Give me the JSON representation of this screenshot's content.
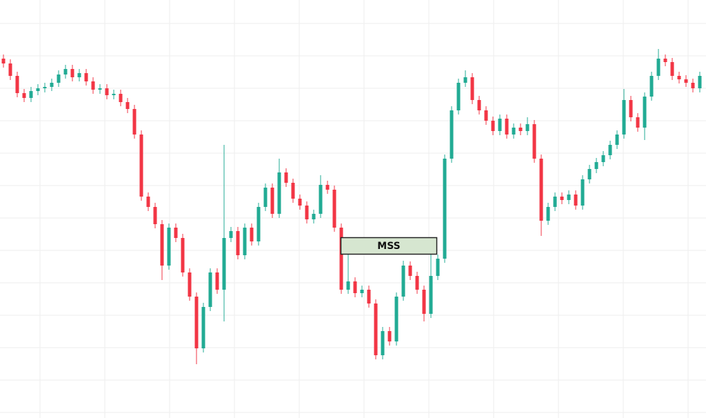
{
  "chart_data": {
    "type": "candlestick",
    "up_color": "#22ab94",
    "down_color": "#f23645",
    "grid": true,
    "ylim": [
      0,
      606
    ],
    "annotations": [
      {
        "text": "MSS",
        "fill": "#d6e6d0",
        "border": "#222222"
      }
    ],
    "open": [
      521,
      514,
      496,
      471,
      464,
      474,
      478,
      480,
      486,
      498,
      506,
      494,
      500,
      488,
      476,
      478,
      468,
      470,
      458,
      448,
      411,
      321,
      306,
      281,
      221,
      276,
      261,
      211,
      176,
      101,
      161,
      211,
      186,
      261,
      271,
      236,
      276,
      256,
      306,
      334,
      296,
      356,
      341,
      318,
      308,
      288,
      296,
      338,
      331,
      276,
      186,
      198,
      181,
      186,
      166,
      91,
      126,
      111,
      176,
      221,
      206,
      186,
      151,
      206,
      231,
      376,
      446,
      486,
      494,
      461,
      446,
      431,
      416,
      434,
      411,
      421,
      416,
      426,
      376,
      286,
      306,
      321,
      316,
      324,
      308,
      346,
      361,
      371,
      381,
      396,
      411,
      461,
      436,
      421,
      466,
      496,
      521,
      516,
      496,
      491,
      486,
      478
    ],
    "high": [
      527,
      520,
      502,
      477,
      480,
      484,
      486,
      492,
      504,
      512,
      512,
      506,
      506,
      494,
      484,
      484,
      476,
      476,
      464,
      454,
      417,
      327,
      312,
      287,
      282,
      282,
      267,
      217,
      182,
      167,
      217,
      217,
      396,
      277,
      277,
      282,
      282,
      312,
      340,
      340,
      376,
      362,
      347,
      324,
      314,
      302,
      352,
      344,
      337,
      282,
      238,
      204,
      192,
      192,
      172,
      132,
      132,
      182,
      228,
      227,
      212,
      192,
      250,
      237,
      382,
      452,
      492,
      504,
      500,
      467,
      452,
      437,
      440,
      440,
      427,
      427,
      436,
      432,
      382,
      312,
      327,
      327,
      330,
      330,
      352,
      367,
      377,
      387,
      402,
      417,
      477,
      467,
      442,
      472,
      502,
      535,
      527,
      522,
      502,
      497,
      492,
      502
    ],
    "low": [
      508,
      490,
      465,
      458,
      458,
      468,
      472,
      474,
      480,
      492,
      488,
      488,
      482,
      470,
      470,
      462,
      462,
      452,
      442,
      405,
      315,
      300,
      275,
      200,
      215,
      255,
      205,
      170,
      78,
      95,
      155,
      180,
      140,
      255,
      230,
      230,
      250,
      250,
      300,
      290,
      290,
      335,
      312,
      302,
      282,
      282,
      290,
      325,
      270,
      180,
      180,
      175,
      175,
      160,
      85,
      85,
      105,
      105,
      170,
      200,
      180,
      140,
      145,
      200,
      225,
      370,
      440,
      480,
      455,
      440,
      425,
      410,
      410,
      405,
      405,
      410,
      410,
      370,
      264,
      280,
      300,
      310,
      310,
      302,
      302,
      340,
      355,
      365,
      375,
      390,
      405,
      430,
      415,
      403,
      460,
      490,
      510,
      490,
      485,
      480,
      472,
      472
    ],
    "close": [
      514,
      496,
      471,
      464,
      474,
      478,
      480,
      486,
      498,
      506,
      494,
      500,
      488,
      476,
      478,
      468,
      470,
      458,
      448,
      411,
      321,
      306,
      281,
      221,
      276,
      261,
      211,
      176,
      101,
      161,
      211,
      186,
      261,
      271,
      236,
      276,
      256,
      306,
      334,
      296,
      356,
      341,
      318,
      308,
      288,
      296,
      338,
      331,
      276,
      186,
      198,
      181,
      186,
      166,
      91,
      126,
      111,
      176,
      221,
      206,
      186,
      151,
      206,
      231,
      376,
      446,
      486,
      494,
      461,
      446,
      431,
      416,
      434,
      411,
      421,
      416,
      426,
      376,
      286,
      306,
      321,
      316,
      324,
      308,
      346,
      361,
      371,
      381,
      396,
      411,
      461,
      436,
      421,
      466,
      496,
      521,
      516,
      496,
      491,
      486,
      478,
      496
    ]
  }
}
